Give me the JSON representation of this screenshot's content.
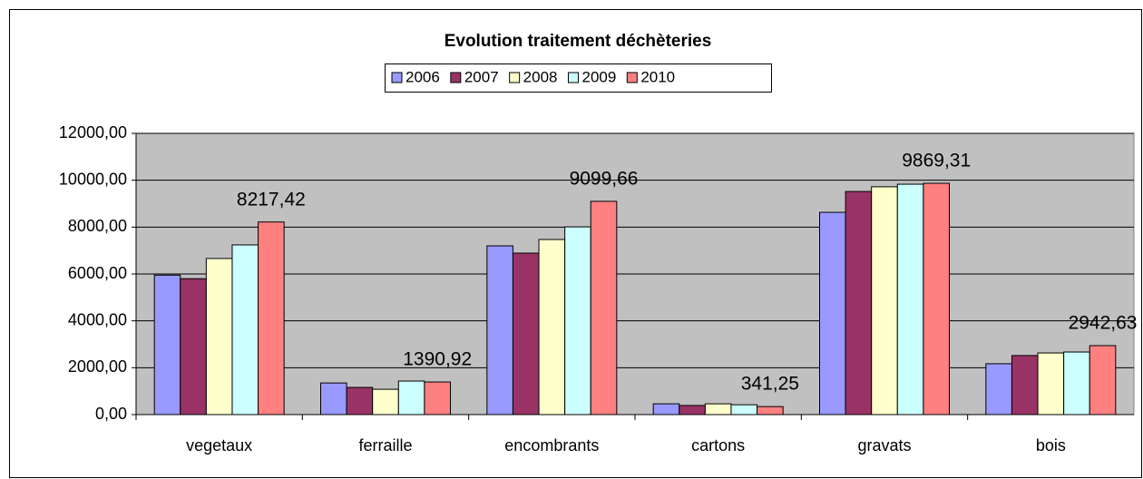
{
  "chart_data": {
    "type": "bar",
    "title": "Evolution traitement déchèteries",
    "categories": [
      "vegetaux",
      "ferraille",
      "encombrants",
      "cartons",
      "gravats",
      "bois"
    ],
    "series": [
      {
        "name": "2006",
        "color": "#9999ff",
        "values": [
          5950,
          1350,
          7200,
          460,
          8630,
          2170
        ]
      },
      {
        "name": "2007",
        "color": "#993366",
        "values": [
          5800,
          1160,
          6890,
          390,
          9520,
          2520
        ]
      },
      {
        "name": "2008",
        "color": "#ffffcc",
        "values": [
          6660,
          1080,
          7470,
          460,
          9720,
          2630
        ]
      },
      {
        "name": "2009",
        "color": "#ccffff",
        "values": [
          7240,
          1430,
          8010,
          420,
          9830,
          2670
        ]
      },
      {
        "name": "2010",
        "color": "#ff8080",
        "values": [
          8217.42,
          1390.92,
          9099.66,
          341.25,
          9869.31,
          2942.63
        ],
        "value_labels": [
          "8217,42",
          "1390,92",
          "9099,66",
          "341,25",
          "9869,31",
          "2942,63"
        ]
      }
    ],
    "ylim": [
      0,
      12000
    ],
    "yticks": [
      {
        "value": 0,
        "label": "0,00"
      },
      {
        "value": 2000,
        "label": "2000,00"
      },
      {
        "value": 4000,
        "label": "4000,00"
      },
      {
        "value": 6000,
        "label": "6000,00"
      },
      {
        "value": 8000,
        "label": "8000,00"
      },
      {
        "value": 10000,
        "label": "10000,00"
      },
      {
        "value": 12000,
        "label": "12000,00"
      }
    ],
    "grid": true,
    "plot_background": "#c0c0c0",
    "legend": "top"
  }
}
